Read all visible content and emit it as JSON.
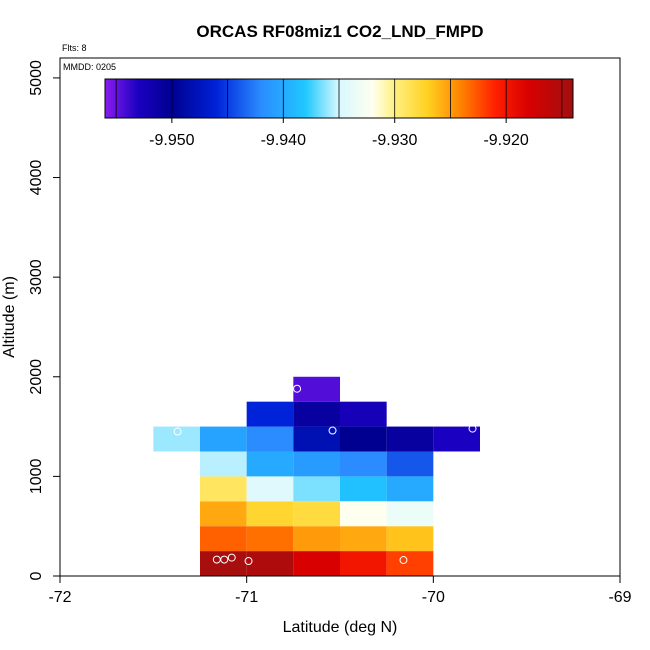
{
  "chart_data": {
    "type": "heatmap",
    "title": "ORCAS RF08miz1 CO2_LND_FMPD",
    "xlabel": "Latitude (deg N)",
    "ylabel": "Altitude (m)",
    "xlim": [
      -72,
      -69
    ],
    "ylim": [
      0,
      5200
    ],
    "xticks": [
      -72,
      -71,
      -70,
      -69
    ],
    "xtick_labels": [
      "-72",
      "-71",
      "-70",
      "-69"
    ],
    "yticks": [
      0,
      1000,
      2000,
      3000,
      4000,
      5000
    ],
    "ytick_labels": [
      "0",
      "1000",
      "2000",
      "3000",
      "4000",
      "5000"
    ],
    "annotations": {
      "flights": "Flts: 8",
      "date": "MMDD: 0205"
    },
    "cell_width_deg": 0.25,
    "cell_height_m": 250,
    "cells": [
      {
        "lat": -71.125,
        "alt": 125,
        "value": -9.9145
      },
      {
        "lat": -70.875,
        "alt": 125,
        "value": -9.915
      },
      {
        "lat": -70.625,
        "alt": 125,
        "value": -9.918
      },
      {
        "lat": -70.375,
        "alt": 125,
        "value": -9.92
      },
      {
        "lat": -70.125,
        "alt": 125,
        "value": -9.922
      },
      {
        "lat": -71.125,
        "alt": 375,
        "value": -9.923
      },
      {
        "lat": -70.875,
        "alt": 375,
        "value": -9.9235
      },
      {
        "lat": -70.625,
        "alt": 375,
        "value": -9.925
      },
      {
        "lat": -70.375,
        "alt": 375,
        "value": -9.9255
      },
      {
        "lat": -70.125,
        "alt": 375,
        "value": -9.9265
      },
      {
        "lat": -71.125,
        "alt": 625,
        "value": -9.9255
      },
      {
        "lat": -70.875,
        "alt": 625,
        "value": -9.9275
      },
      {
        "lat": -70.625,
        "alt": 625,
        "value": -9.928
      },
      {
        "lat": -70.375,
        "alt": 625,
        "value": -9.932
      },
      {
        "lat": -70.125,
        "alt": 625,
        "value": -9.9335
      },
      {
        "lat": -71.125,
        "alt": 875,
        "value": -9.929
      },
      {
        "lat": -70.875,
        "alt": 875,
        "value": -9.9345
      },
      {
        "lat": -70.625,
        "alt": 875,
        "value": -9.9365
      },
      {
        "lat": -70.375,
        "alt": 875,
        "value": -9.9385
      },
      {
        "lat": -70.125,
        "alt": 875,
        "value": -9.94
      },
      {
        "lat": -71.125,
        "alt": 1125,
        "value": -9.9355
      },
      {
        "lat": -70.875,
        "alt": 1125,
        "value": -9.94
      },
      {
        "lat": -70.625,
        "alt": 1125,
        "value": -9.941
      },
      {
        "lat": -70.375,
        "alt": 1125,
        "value": -9.942
      },
      {
        "lat": -70.125,
        "alt": 1125,
        "value": -9.944
      },
      {
        "lat": -71.375,
        "alt": 1375,
        "value": -9.936
      },
      {
        "lat": -71.125,
        "alt": 1375,
        "value": -9.9405
      },
      {
        "lat": -70.875,
        "alt": 1375,
        "value": -9.942
      },
      {
        "lat": -70.625,
        "alt": 1375,
        "value": -9.948
      },
      {
        "lat": -70.375,
        "alt": 1375,
        "value": -9.95
      },
      {
        "lat": -70.125,
        "alt": 1375,
        "value": -9.951
      },
      {
        "lat": -69.875,
        "alt": 1375,
        "value": -9.953
      },
      {
        "lat": -70.875,
        "alt": 1625,
        "value": -9.946
      },
      {
        "lat": -70.625,
        "alt": 1625,
        "value": -9.951
      },
      {
        "lat": -70.375,
        "alt": 1625,
        "value": -9.9525
      },
      {
        "lat": -70.625,
        "alt": 1875,
        "value": -9.9545
      }
    ],
    "markers": [
      {
        "lat": -71.16,
        "alt": 165
      },
      {
        "lat": -71.12,
        "alt": 165
      },
      {
        "lat": -71.08,
        "alt": 185
      },
      {
        "lat": -70.99,
        "alt": 150
      },
      {
        "lat": -70.16,
        "alt": 160
      },
      {
        "lat": -71.37,
        "alt": 1450
      },
      {
        "lat": -70.54,
        "alt": 1460
      },
      {
        "lat": -69.79,
        "alt": 1480
      },
      {
        "lat": -70.73,
        "alt": 1880
      }
    ],
    "colorbar": {
      "min": -9.956,
      "max": -9.914,
      "ticks": [
        -9.95,
        -9.94,
        -9.93,
        -9.92
      ],
      "tick_labels": [
        "-9.950",
        "-9.940",
        "-9.930",
        "-9.920"
      ],
      "stops": [
        {
          "v": -9.956,
          "c": "#8a1cf0"
        },
        {
          "v": -9.953,
          "c": "#1a00c0"
        },
        {
          "v": -9.95,
          "c": "#000090"
        },
        {
          "v": -9.946,
          "c": "#0022d8"
        },
        {
          "v": -9.942,
          "c": "#2a8cff"
        },
        {
          "v": -9.938,
          "c": "#20c8ff"
        },
        {
          "v": -9.935,
          "c": "#d8f8ff"
        },
        {
          "v": -9.932,
          "c": "#fffff0"
        },
        {
          "v": -9.93,
          "c": "#fff080"
        },
        {
          "v": -9.927,
          "c": "#ffd020"
        },
        {
          "v": -9.924,
          "c": "#ff8000"
        },
        {
          "v": -9.921,
          "c": "#ff2000"
        },
        {
          "v": -9.918,
          "c": "#d80000"
        },
        {
          "v": -9.914,
          "c": "#a01010"
        }
      ],
      "separators": [
        -9.955,
        -9.95,
        -9.945,
        -9.94,
        -9.935,
        -9.93,
        -9.925,
        -9.92,
        -9.915
      ]
    }
  }
}
